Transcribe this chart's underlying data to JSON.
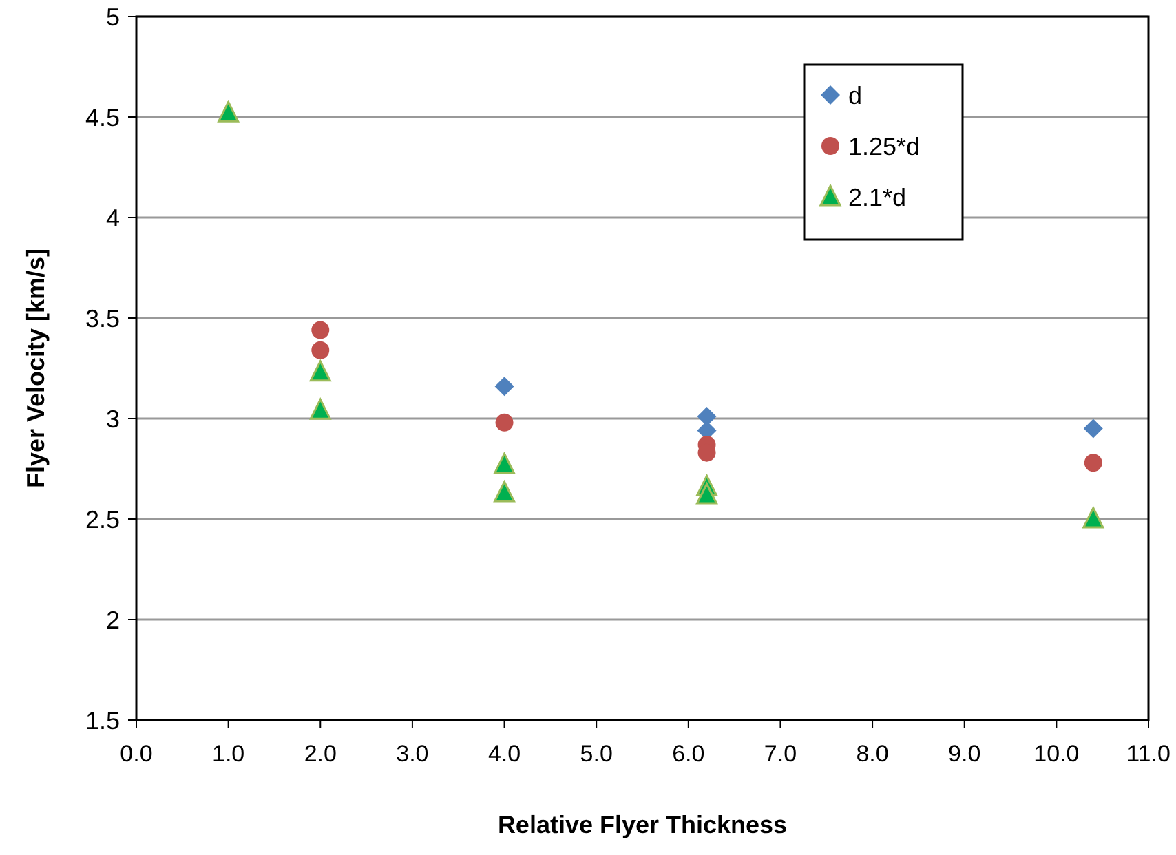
{
  "chart_data": {
    "type": "scatter",
    "xlabel": "Relative Flyer Thickness",
    "ylabel": "Flyer Velocity [km/s]",
    "series": [
      {
        "name": "d",
        "color": "#4f81bd",
        "marker": "diamond",
        "x": [
          4.0,
          6.2,
          6.2,
          10.4
        ],
        "values": [
          3.16,
          3.01,
          2.94,
          2.95
        ]
      },
      {
        "name": "1.25*d",
        "color": "#c0504d",
        "marker": "circle",
        "x": [
          2.0,
          2.0,
          4.0,
          6.2,
          6.2,
          10.4
        ],
        "values": [
          3.44,
          3.34,
          2.98,
          2.87,
          2.83,
          2.78
        ]
      },
      {
        "name": "2.1*d",
        "color": "#00b050",
        "marker": "triangle",
        "x": [
          1.0,
          2.0,
          2.0,
          4.0,
          4.0,
          6.2,
          6.2,
          10.4
        ],
        "values": [
          4.52,
          3.23,
          3.04,
          2.77,
          2.63,
          2.66,
          2.62,
          2.5
        ]
      }
    ],
    "xlim": [
      0,
      11
    ],
    "xticks": [
      {
        "value": 0,
        "label": "0.0"
      },
      {
        "value": 1,
        "label": "1.0"
      },
      {
        "value": 2,
        "label": "2.0"
      },
      {
        "value": 3,
        "label": "3.0"
      },
      {
        "value": 4,
        "label": "4.0"
      },
      {
        "value": 5,
        "label": "5.0"
      },
      {
        "value": 6,
        "label": "6.0"
      },
      {
        "value": 7,
        "label": "7.0"
      },
      {
        "value": 8,
        "label": "8.0"
      },
      {
        "value": 9,
        "label": "9.0"
      },
      {
        "value": 10,
        "label": "10.0"
      },
      {
        "value": 11,
        "label": "11.0"
      }
    ],
    "ylim": [
      1.5,
      5
    ],
    "yticks": [
      1.5,
      2,
      2.5,
      3,
      3.5,
      4,
      4.5,
      5
    ],
    "grid": "y",
    "legend": "top right"
  }
}
